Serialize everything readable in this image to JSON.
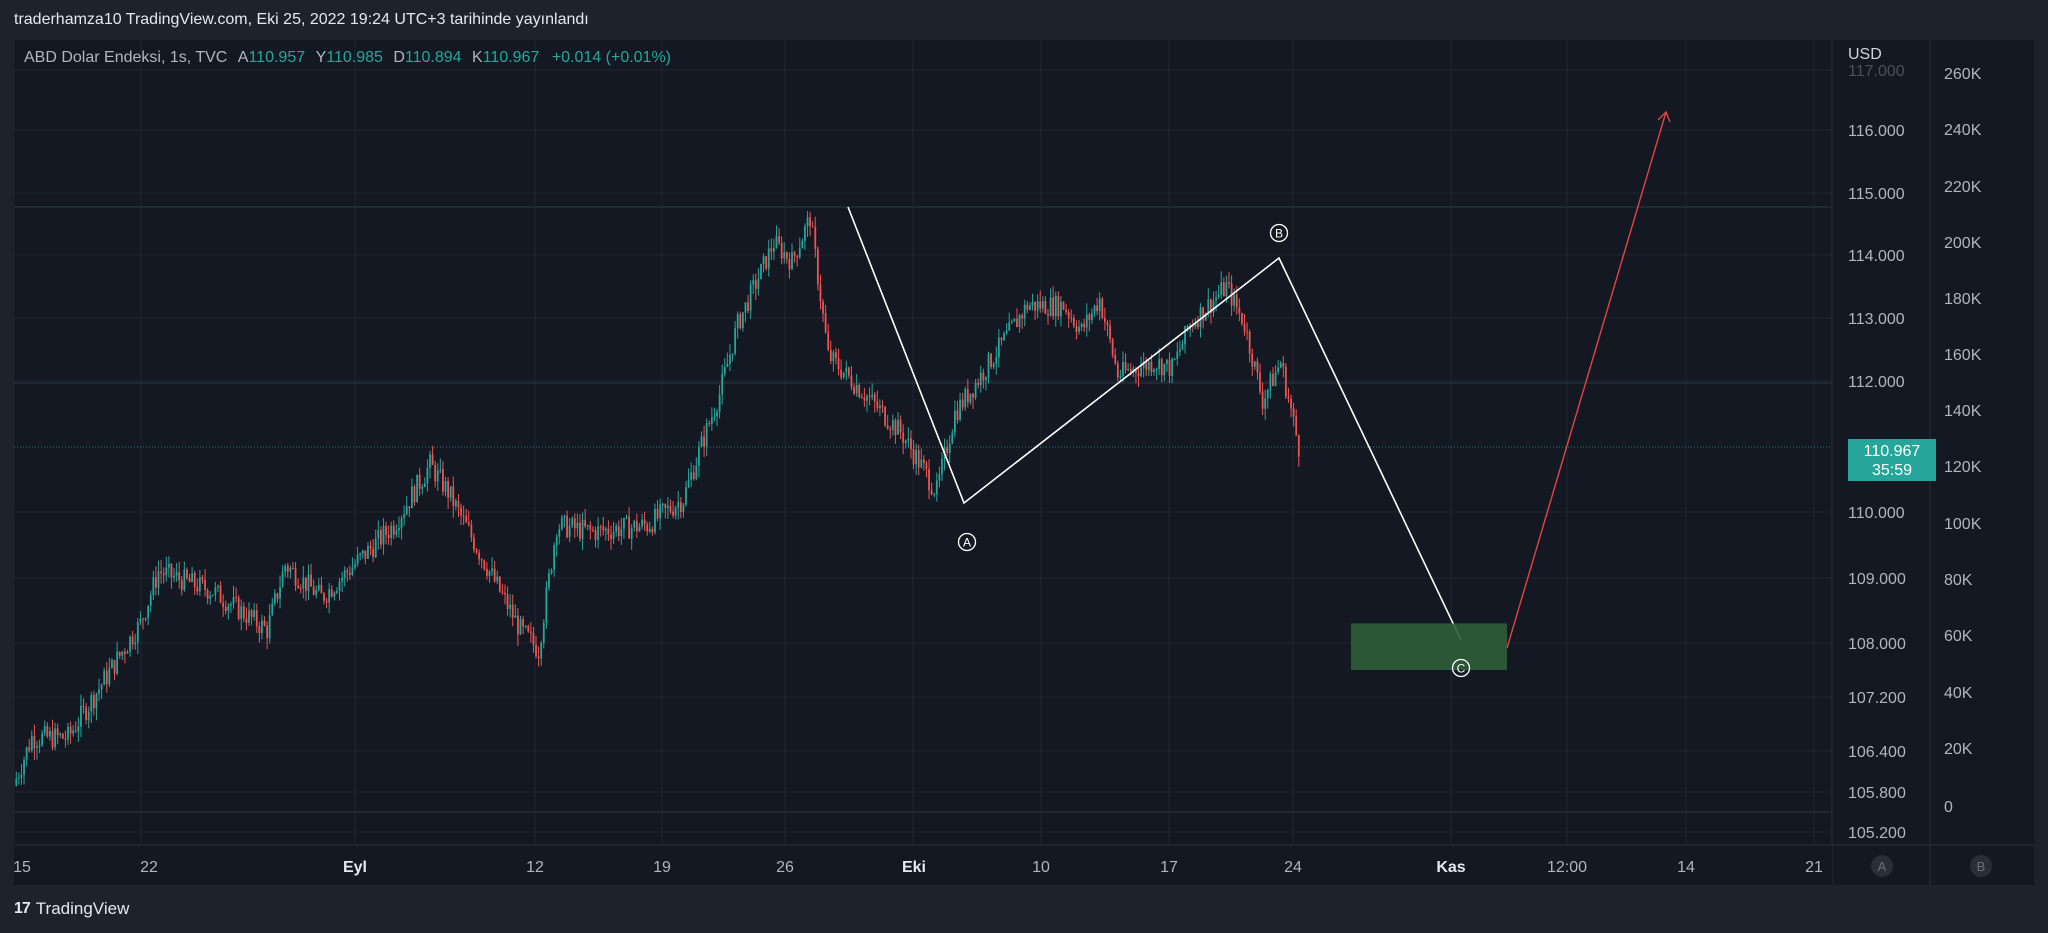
{
  "header": {
    "published": "traderhamza10 TradingView.com, Eki 25, 2022 19:24 UTC+3 tarihinde yayınlandı"
  },
  "legend": {
    "symbol": "ABD Dolar Endeksi, 1s, TVC",
    "open_label": "A",
    "open": "110.957",
    "high_label": "Y",
    "high": "110.985",
    "low_label": "D",
    "low": "110.894",
    "close_label": "K",
    "close": "110.967",
    "change": "+0.014 (+0.01%)"
  },
  "price_tag": {
    "price": "110.967",
    "countdown": "35:59"
  },
  "footer": {
    "brand": "TradingView",
    "logo": "17"
  },
  "colors": {
    "background": "#141823",
    "up": "#26a69a",
    "down": "#ef5350",
    "wave_line": "#ffffff",
    "target_arrow": "#e04545",
    "target_box": "#2e5e3a"
  },
  "chart_data": {
    "type": "candlestick",
    "symbol": "ABD Dolar Endeksi",
    "interval": "1s",
    "currency_label": "USD",
    "y_ticks_left": [
      "117.000",
      "116.000",
      "115.000",
      "114.000",
      "113.000",
      "112.000",
      "110.000",
      "109.000",
      "108.000",
      "107.200",
      "106.400",
      "105.800",
      "105.200"
    ],
    "y_ticks_right": [
      "260K",
      "240K",
      "220K",
      "200K",
      "180K",
      "160K",
      "140K",
      "120K",
      "100K",
      "80K",
      "60K",
      "40K",
      "20K",
      "0"
    ],
    "x_ticks": [
      "15",
      "22",
      "Eyl",
      "12",
      "19",
      "26",
      "Eki",
      "10",
      "17",
      "24",
      "Kas",
      "12:00",
      "14",
      "21"
    ],
    "scale_buttons": [
      "A",
      "B"
    ],
    "price_path": [
      [
        "15 Ağu",
        105.9
      ],
      [
        "16 Ağu",
        106.6
      ],
      [
        "18 Ağu",
        106.6
      ],
      [
        "22 Ağu",
        108.3
      ],
      [
        "23 Ağu",
        109.1
      ],
      [
        "26 Ağu",
        108.8
      ],
      [
        "29 Ağu",
        108.2
      ],
      [
        "30 Ağu",
        109.2
      ],
      [
        "1 Eyl",
        108.7
      ],
      [
        "5 Eyl",
        109.8
      ],
      [
        "7 Eyl",
        110.7
      ],
      [
        "8 Eyl",
        110.3
      ],
      [
        "12 Eyl",
        108.2
      ],
      [
        "13 Eyl",
        107.9
      ],
      [
        "14 Eyl",
        109.8
      ],
      [
        "16 Eyl",
        109.7
      ],
      [
        "19 Eyl",
        109.8
      ],
      [
        "21 Eyl",
        110.2
      ],
      [
        "23 Eyl",
        111.8
      ],
      [
        "24 Eyl",
        112.9
      ],
      [
        "26 Eyl",
        114.2
      ],
      [
        "27 Eyl",
        113.9
      ],
      [
        "28 Eyl",
        114.6
      ],
      [
        "29 Eyl",
        112.4
      ],
      [
        "3 Eki",
        111.2
      ],
      [
        "5 Eki",
        110.3
      ],
      [
        "6 Eki",
        111.5
      ],
      [
        "7 Eki",
        111.9
      ],
      [
        "10 Eki",
        113.2
      ],
      [
        "12 Eki",
        113.2
      ],
      [
        "13 Eki",
        112.8
      ],
      [
        "14 Eki",
        113.3
      ],
      [
        "15 Eki",
        112.1
      ],
      [
        "17 Eki",
        112.3
      ],
      [
        "18 Eki",
        112.2
      ],
      [
        "19 Eki",
        112.9
      ],
      [
        "21 Eki",
        113.5
      ],
      [
        "22 Eki",
        112.9
      ],
      [
        "23 Eki",
        111.7
      ],
      [
        "24 Eki",
        112.3
      ],
      [
        "25 Eki",
        110.967
      ]
    ],
    "last_price": 110.967,
    "waves": [
      {
        "label": "A",
        "price": 110.2
      },
      {
        "label": "B",
        "price": 113.9
      },
      {
        "label": "C",
        "price": 108.0
      }
    ],
    "target_zone": {
      "low": 107.6,
      "high": 108.3
    },
    "projection_target": 116.3
  }
}
